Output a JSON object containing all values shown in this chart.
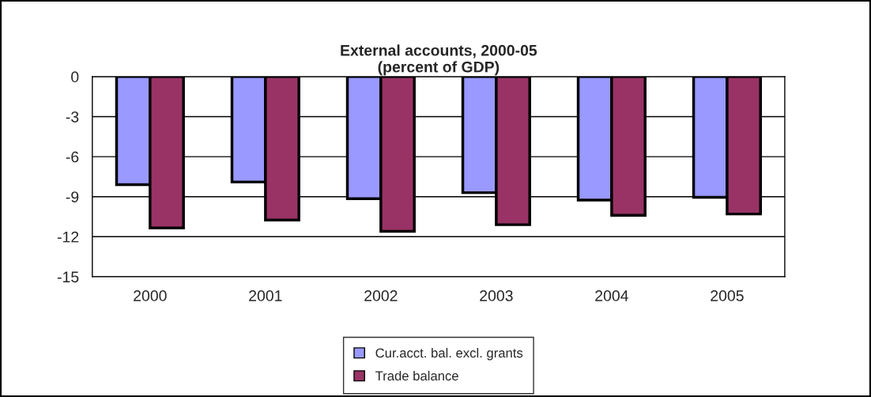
{
  "chart_data": {
    "type": "bar",
    "title": "External accounts, 2000-05\n(percent of GDP)",
    "categories": [
      "2000",
      "2001",
      "2002",
      "2003",
      "2004",
      "2005"
    ],
    "series": [
      {
        "name": "Cur.acct. bal. excl. grants",
        "color": "#9999ff",
        "values": [
          -8.1,
          -7.9,
          -9.15,
          -8.7,
          -9.25,
          -9.05
        ]
      },
      {
        "name": "Trade balance",
        "color": "#993366",
        "values": [
          -11.35,
          -10.75,
          -11.6,
          -11.1,
          -10.4,
          -10.3
        ]
      }
    ],
    "ylim": [
      -15,
      0
    ],
    "yticks": [
      -15,
      -12,
      -9,
      -6,
      -3,
      0
    ],
    "grid": "y",
    "legend": "bottom"
  }
}
